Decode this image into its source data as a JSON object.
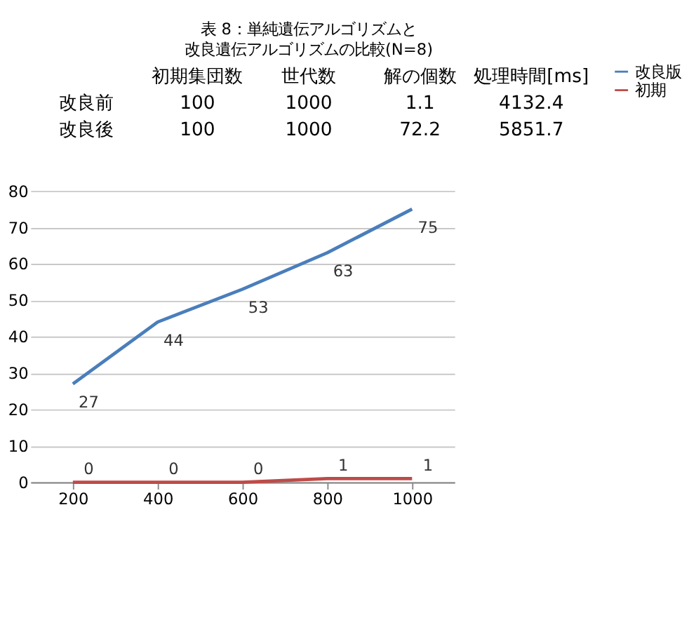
{
  "chart_data": {
    "type": "line",
    "title": "表 8：単純遺伝アルゴリズムと",
    "subtitle": "改良遺伝アルゴリズムの比較(N=8)",
    "annotations": [
      "初期集団数",
      "世代数",
      "解の個数",
      "処理時間[ms]",
      "改良前",
      "100",
      "1000",
      "1.1",
      "4132.4",
      "改良後",
      "100",
      "1000",
      "72.2",
      "5851.7"
    ],
    "x": [
      200,
      400,
      600,
      800,
      1000
    ],
    "xlim": [
      100,
      1100
    ],
    "xticks": [
      200,
      400,
      600,
      800,
      1000
    ],
    "series": [
      {
        "name": "改良版",
        "color": "#4a7ebb",
        "values": [
          27,
          44,
          53,
          63,
          75
        ]
      },
      {
        "name": "初期",
        "color": "#be4b48",
        "values": [
          0,
          0,
          0,
          1,
          1
        ]
      }
    ],
    "ylim": [
      0,
      80
    ],
    "yticks": [
      0,
      10,
      20,
      30,
      40,
      50,
      60,
      70,
      80
    ],
    "grid": "y",
    "legend": "right",
    "data_labels": true,
    "marker": "none",
    "line_style": "solid"
  }
}
